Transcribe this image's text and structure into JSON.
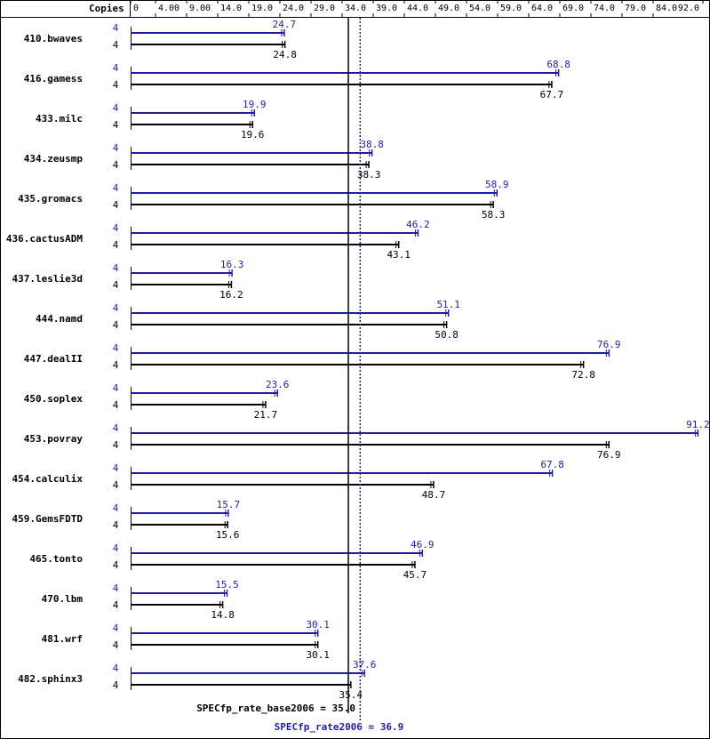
{
  "chart_data": {
    "type": "bar",
    "orientation": "horizontal",
    "header_label": "Copies",
    "x_ticks": [
      "0",
      "4.00",
      "9.00",
      "14.0",
      "19.0",
      "24.0",
      "29.0",
      "34.0",
      "39.0",
      "44.0",
      "49.0",
      "54.0",
      "59.0",
      "64.0",
      "69.0",
      "74.0",
      "79.0",
      "84.0",
      "92.0"
    ],
    "xlim": [
      0,
      92
    ],
    "colors": {
      "peak": "#1f1fa0",
      "base": "#000000"
    },
    "categories": [
      "410.bwaves",
      "416.gamess",
      "433.milc",
      "434.zeusmp",
      "435.gromacs",
      "436.cactusADM",
      "437.leslie3d",
      "444.namd",
      "447.dealII",
      "450.soplex",
      "453.povray",
      "454.calculix",
      "459.GemsFDTD",
      "465.tonto",
      "470.lbm",
      "481.wrf",
      "482.sphinx3"
    ],
    "copies_peak": [
      "4",
      "4",
      "4",
      "4",
      "4",
      "4",
      "4",
      "4",
      "4",
      "4",
      "4",
      "4",
      "4",
      "4",
      "4",
      "4",
      "4"
    ],
    "copies_base": [
      "4",
      "4",
      "4",
      "4",
      "4",
      "4",
      "4",
      "4",
      "4",
      "4",
      "4",
      "4",
      "4",
      "4",
      "4",
      "4",
      "4"
    ],
    "series": [
      {
        "values": [
          24.7,
          68.8,
          19.9,
          38.8,
          58.9,
          46.2,
          16.3,
          51.1,
          76.9,
          23.6,
          91.2,
          67.8,
          15.7,
          46.9,
          15.5,
          30.1,
          37.6
        ],
        "labels": [
          "24.7",
          "68.8",
          "19.9",
          "38.8",
          "58.9",
          "46.2",
          "16.3",
          "51.1",
          "76.9",
          "23.6",
          "91.2",
          "67.8",
          "15.7",
          "46.9",
          "15.5",
          "30.1",
          "37.6"
        ]
      },
      {
        "values": [
          24.8,
          67.7,
          19.6,
          38.3,
          58.3,
          43.1,
          16.2,
          50.8,
          72.8,
          21.7,
          76.9,
          48.7,
          15.6,
          45.7,
          14.8,
          30.1,
          35.4
        ],
        "labels": [
          "24.8",
          "67.7",
          "19.6",
          "38.3",
          "58.3",
          "43.1",
          "16.2",
          "50.8",
          "72.8",
          "21.7",
          "76.9",
          "48.7",
          "15.6",
          "45.7",
          "14.8",
          "30.1",
          "35.4"
        ]
      }
    ],
    "reference_lines": [
      {
        "value": 35.0,
        "label": "SPECfp_rate_base2006 = 35.0",
        "style": "solid"
      },
      {
        "value": 36.9,
        "label": "SPECfp_rate2006 = 36.9",
        "style": "dotted"
      }
    ]
  }
}
